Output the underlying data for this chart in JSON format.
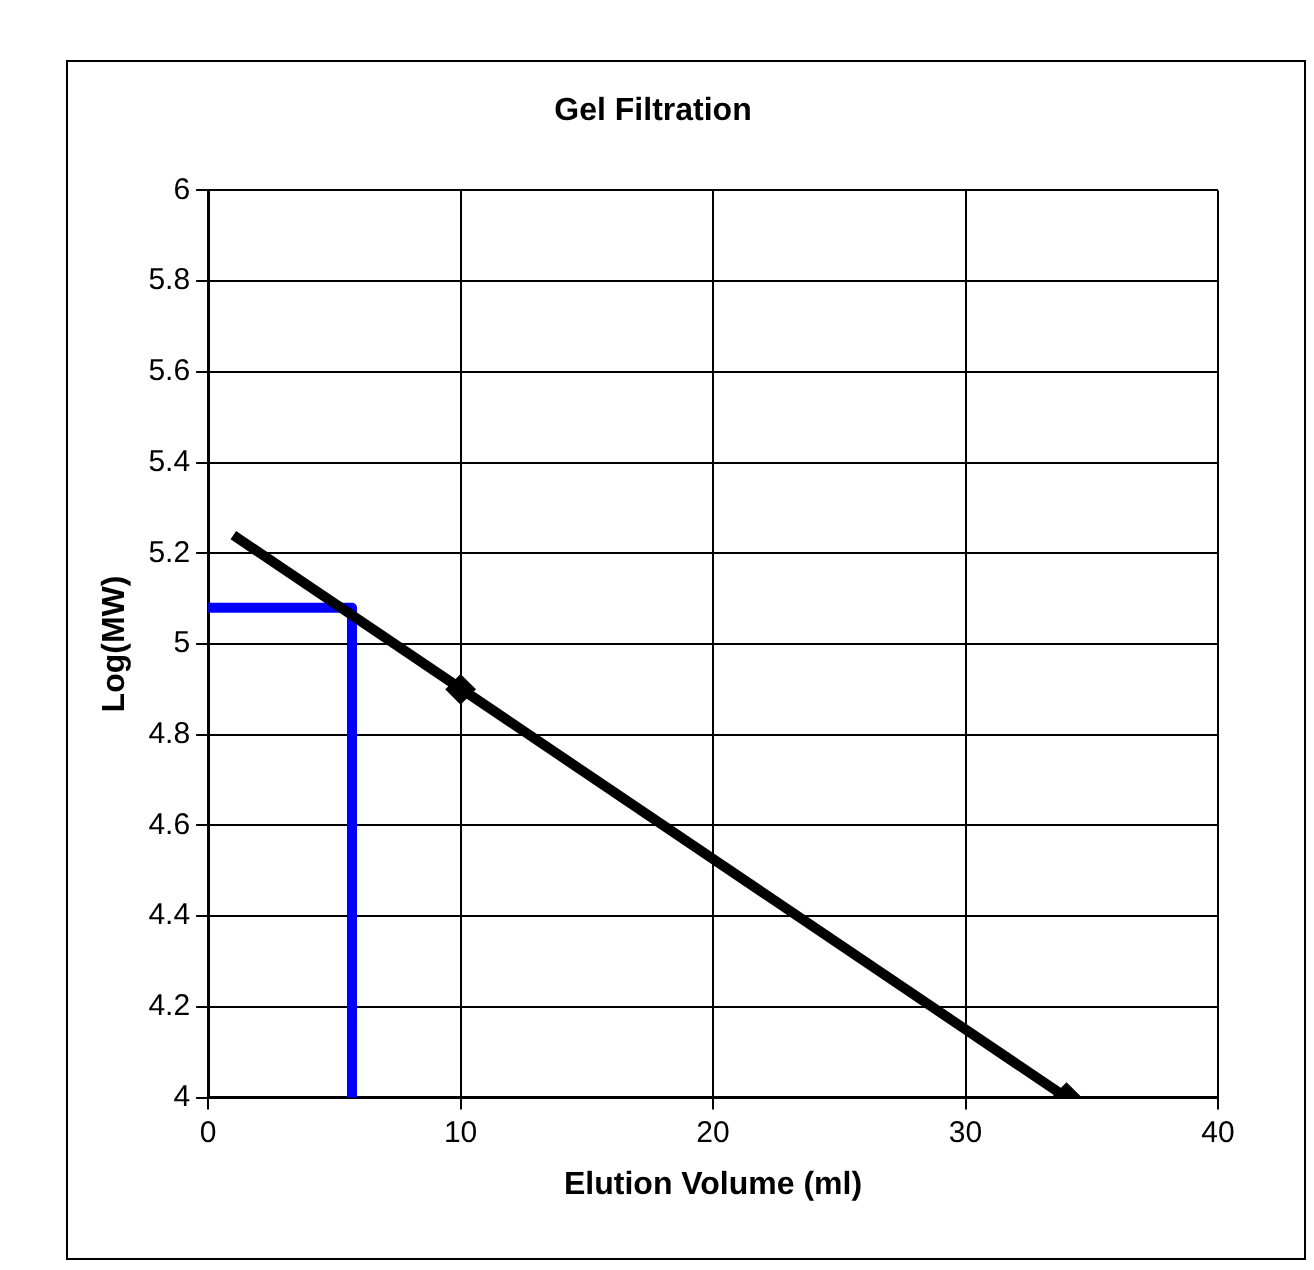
{
  "chart_data": {
    "type": "line",
    "title": "Gel Filtration",
    "xlabel": "Elution Volume (ml)",
    "ylabel": "Log(MW)",
    "xlim": [
      0,
      40
    ],
    "xticks": [
      0,
      10,
      20,
      30,
      40
    ],
    "ylim": [
      4,
      6
    ],
    "yticks": [
      4,
      4.2,
      4.4,
      4.6,
      4.8,
      5,
      5.2,
      5.4,
      5.6,
      5.8,
      6
    ],
    "grid": true,
    "legend": false,
    "series": [
      {
        "x": [
          1,
          34
        ],
        "values": [
          5.24,
          4.0
        ],
        "color": "#000000",
        "marker": "none"
      },
      {
        "type": "scatter",
        "x": [
          10,
          34
        ],
        "values": [
          4.9,
          4.0
        ],
        "color": "#000000",
        "marker": "diamond"
      },
      {
        "x": [
          0,
          5.7,
          5.7
        ],
        "values": [
          5.08,
          5.08,
          4.0
        ],
        "color": "#0000ff",
        "marker": "none"
      }
    ]
  }
}
